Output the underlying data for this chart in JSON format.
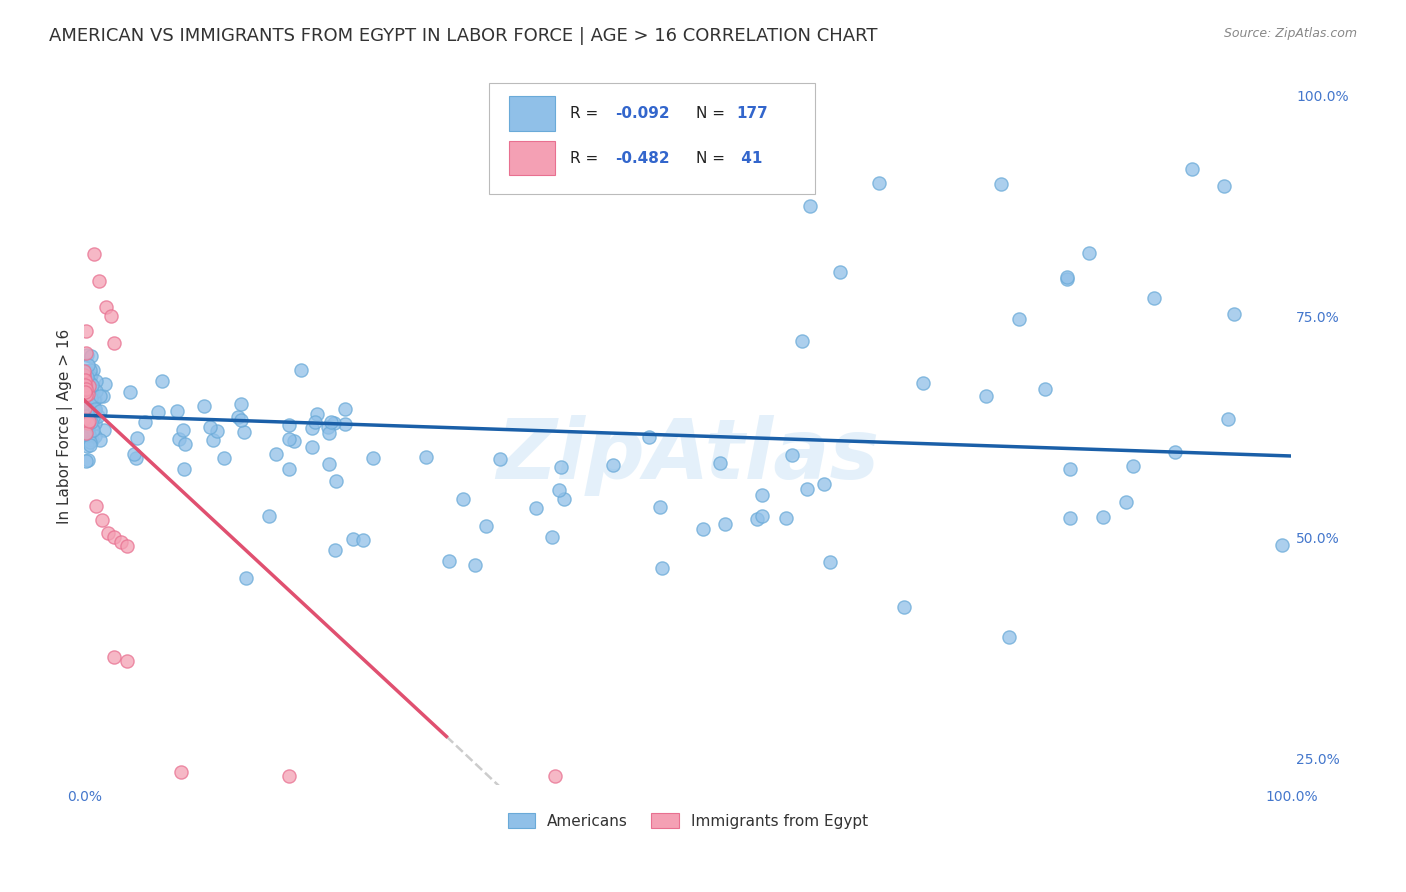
{
  "title": "AMERICAN VS IMMIGRANTS FROM EGYPT IN LABOR FORCE | AGE > 16 CORRELATION CHART",
  "source": "Source: ZipAtlas.com",
  "ylabel": "In Labor Force | Age > 16",
  "xlim": [
    0.0,
    1.0
  ],
  "ylim": [
    0.22,
    1.03
  ],
  "plot_ylim": [
    0.22,
    1.03
  ],
  "xtick_vals": [
    0.0,
    1.0
  ],
  "xtick_labels": [
    "0.0%",
    "100.0%"
  ],
  "ytick_positions_right": [
    1.0,
    0.75,
    0.5,
    0.25
  ],
  "ytick_labels_right": [
    "100.0%",
    "75.0%",
    "50.0%",
    "25.0%"
  ],
  "americans_color": "#90C0E8",
  "egypt_color": "#F4A0B4",
  "americans_edge_color": "#6AAAD8",
  "egypt_edge_color": "#E87090",
  "americans_line_color": "#1A5FA8",
  "egypt_line_color": "#E05070",
  "trendline_ext_color": "#CCCCCC",
  "watermark": "ZipAtlas",
  "blue_line_x": [
    0.0,
    1.0
  ],
  "blue_line_y": [
    0.638,
    0.592
  ],
  "pink_line_x": [
    0.0,
    0.3
  ],
  "pink_line_y": [
    0.655,
    0.275
  ],
  "gray_line_x": [
    0.3,
    0.88
  ],
  "gray_line_y": [
    0.275,
    -0.47
  ],
  "background_color": "#FFFFFF",
  "grid_color": "#DDDDDD",
  "title_fontsize": 13,
  "axis_label_fontsize": 11,
  "tick_fontsize": 10,
  "legend_fontsize": 12,
  "marker_size": 90,
  "marker_alpha": 0.75,
  "marker_linewidth": 1.0
}
